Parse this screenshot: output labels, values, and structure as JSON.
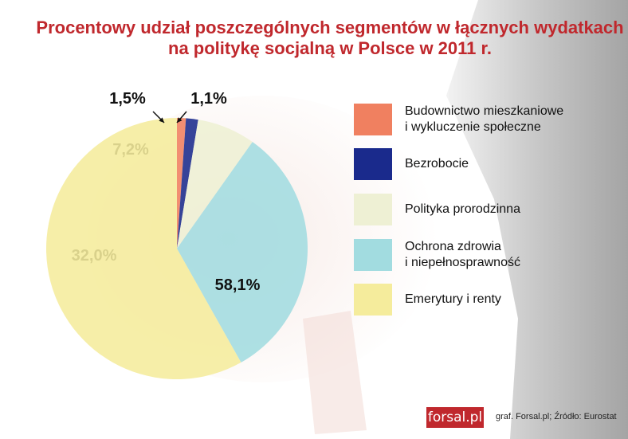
{
  "chart_data": {
    "type": "pie",
    "title": "Procentowy udział poszczególnych segmentów w łącznych wydatkach na politykę socjalną w Polsce w 2011 r.",
    "title_lines": [
      "Procentowy udział poszczególnych segmentów w łącznych wydatkach",
      "na politykę socjalną w Polsce w 2011 r."
    ],
    "slices": [
      {
        "label": "Budownictwo mieszkaniowe i wykluczenie społeczne",
        "legend_lines": [
          "Budownictwo mieszkaniowe",
          "i wykluczenie społeczne"
        ],
        "value": 1.1,
        "value_label": "1,1%",
        "color": "#f08060"
      },
      {
        "label": "Bezrobocie",
        "legend_lines": [
          "Bezrobocie"
        ],
        "value": 1.5,
        "value_label": "1,5%",
        "color": "#1a2a8c"
      },
      {
        "label": "Polityka prorodzinna",
        "legend_lines": [
          "Polityka prorodzinna"
        ],
        "value": 7.2,
        "value_label": "7,2%",
        "color": "#eef0d4"
      },
      {
        "label": "Ochrona zdrowia i niepełnosprawność",
        "legend_lines": [
          "Ochrona zdrowia",
          "i niepełnosprawność"
        ],
        "value": 32.0,
        "value_label": "32,0%",
        "color": "#a2dce0"
      },
      {
        "label": "Emerytury i renty",
        "legend_lines": [
          "Emerytury i renty"
        ],
        "value": 58.1,
        "value_label": "58,1%",
        "color": "#f5ec9c"
      }
    ],
    "legend_position": "right"
  },
  "footer": {
    "logo": "forsal.pl",
    "credit": "graf. Forsal.pl; Źródło: Eurostat"
  }
}
